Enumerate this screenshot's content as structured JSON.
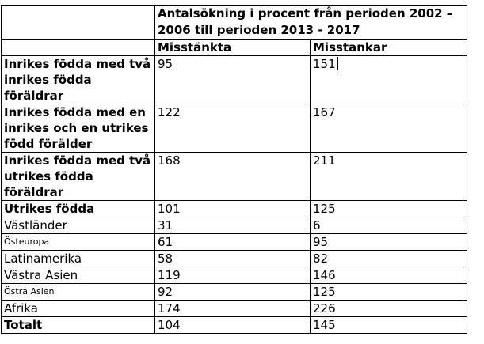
{
  "table": {
    "header": {
      "span_title": "Antalsökning i procent från perioden 2002 – 2006 till perioden 2013 - 2017",
      "col1": "Misstänkta",
      "col2": "Misstankar"
    },
    "rows": [
      {
        "label": "Inrikes födda med två inrikes födda föräldrar",
        "v1": "95",
        "v2": "151",
        "style": "bold"
      },
      {
        "label": "Inrikes födda med en inrikes och en utrikes född förälder",
        "v1": "122",
        "v2": "167",
        "style": "bold"
      },
      {
        "label": "Inrikes födda med två utrikes födda föräldrar",
        "v1": "168",
        "v2": "211",
        "style": "bold"
      },
      {
        "label": "Utrikes födda",
        "v1": "101",
        "v2": "125",
        "style": "bold"
      },
      {
        "label": "Västländer",
        "v1": "31",
        "v2": "6",
        "style": "normal"
      },
      {
        "label": "Östeuropa",
        "v1": "61",
        "v2": "95",
        "style": "small"
      },
      {
        "label": "Latinamerika",
        "v1": "58",
        "v2": "82",
        "style": "normal"
      },
      {
        "label": "Västra Asien",
        "v1": "119",
        "v2": "146",
        "style": "normal"
      },
      {
        "label": "Östra Asien",
        "v1": "92",
        "v2": "125",
        "style": "small"
      },
      {
        "label": "Afrika",
        "v1": "174",
        "v2": "226",
        "style": "normal"
      },
      {
        "label": "Totalt",
        "v1": "104",
        "v2": "145",
        "style": "bold"
      }
    ]
  }
}
